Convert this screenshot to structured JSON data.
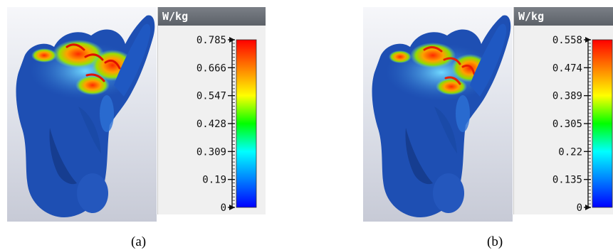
{
  "panels": [
    {
      "caption": "(a)",
      "unit": "W/kg",
      "ticks": [
        "0.785",
        "0.666",
        "0.547",
        "0.428",
        "0.309",
        "0.19",
        "0"
      ],
      "max_value": 0.785
    },
    {
      "caption": "(b)",
      "unit": "W/kg",
      "ticks": [
        "0.558",
        "0.474",
        "0.389",
        "0.305",
        "0.22",
        "0.135",
        "0"
      ],
      "max_value": 0.558
    }
  ],
  "colorscale": [
    "#ff0000",
    "#ff7f00",
    "#ffff00",
    "#00ff00",
    "#00ffff",
    "#0080ff",
    "#0000ff"
  ]
}
